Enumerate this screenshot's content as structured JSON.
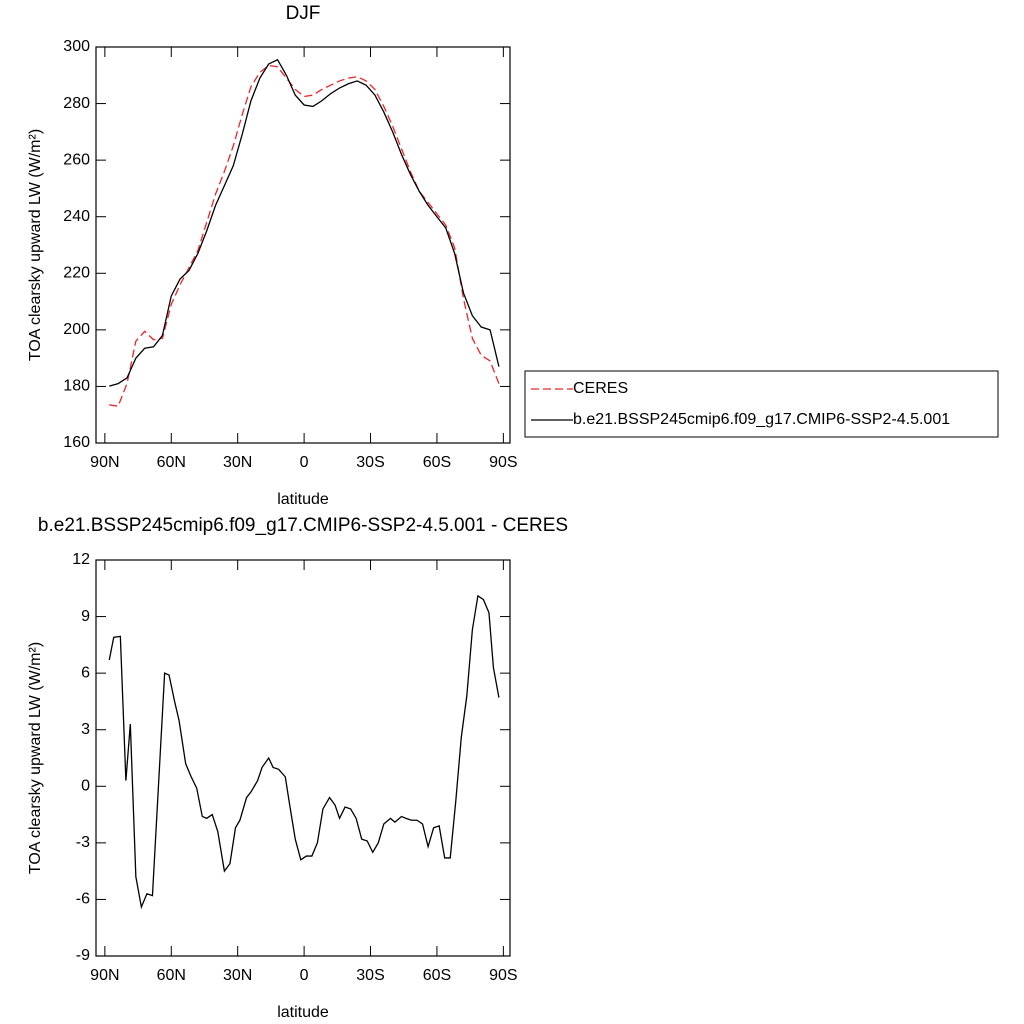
{
  "chart_data": [
    {
      "type": "line",
      "title": "DJF",
      "xlabel": "latitude",
      "ylabel": "TOA clearsky upward LW (W/m²)",
      "x": [
        88,
        84,
        80,
        76,
        72,
        68,
        64,
        60,
        56,
        52,
        48,
        44,
        40,
        36,
        32,
        28,
        24,
        20,
        16,
        12,
        8,
        4,
        0,
        -4,
        -8,
        -12,
        -16,
        -20,
        -24,
        -28,
        -32,
        -36,
        -40,
        -44,
        -48,
        -52,
        -56,
        -60,
        -64,
        -68,
        -72,
        -76,
        -80,
        -84,
        -88
      ],
      "series": [
        {
          "name": "CERES",
          "color": "#e8262a",
          "line_style": "dashed",
          "values": [
            173.5,
            173,
            181,
            196,
            199.5,
            196.5,
            197,
            209,
            216,
            222,
            228,
            238,
            248,
            256,
            265,
            276,
            286,
            291,
            293.5,
            293,
            289,
            285,
            282.5,
            283,
            285,
            286.5,
            288,
            289,
            289.5,
            288,
            285,
            279,
            272,
            264,
            256,
            249,
            245,
            241,
            237,
            229,
            211,
            197,
            191,
            189,
            181
          ]
        },
        {
          "name": "b.e21.BSSP245cmip6.f09_g17.CMIP6-SSP2-4.5.001",
          "color": "#000000",
          "line_style": "solid",
          "values": [
            180.1,
            181,
            183,
            190,
            193.5,
            194,
            198,
            212,
            218,
            221,
            227,
            235,
            244,
            251,
            258,
            269,
            281,
            289,
            294,
            295.5,
            290,
            283,
            279.5,
            279,
            281,
            283.5,
            285.5,
            287,
            288,
            286.5,
            283,
            277,
            270,
            262,
            255,
            249,
            244,
            240,
            236,
            227,
            213,
            205,
            201,
            200,
            187
          ]
        }
      ],
      "xlim": [
        94,
        -93
      ],
      "xticks": [
        {
          "value": 90,
          "label": "90N"
        },
        {
          "value": 60,
          "label": "60N"
        },
        {
          "value": 30,
          "label": "30N"
        },
        0,
        {
          "value": -30,
          "label": "30S"
        },
        {
          "value": -60,
          "label": "60S"
        },
        {
          "value": -90,
          "label": "90S"
        }
      ],
      "ylim": [
        160,
        300
      ],
      "yticks": [
        160,
        180,
        200,
        220,
        240,
        260,
        280,
        300
      ],
      "grid": false,
      "legend": "right"
    },
    {
      "type": "line",
      "title": "b.e21.BSSP245cmip6.f09_g17.CMIP6-SSP2-4.5.001 - CERES",
      "xlabel": "latitude",
      "ylabel": "TOA clearsky upward LW (W/m²)",
      "x": [
        88,
        86,
        83,
        80.5,
        78.5,
        76,
        73.5,
        71,
        68.5,
        63,
        61,
        58.5,
        56.5,
        53.5,
        51,
        48.5,
        46,
        44,
        41.5,
        39,
        36,
        33.5,
        31,
        29,
        26,
        24,
        21,
        19,
        16,
        14,
        11.5,
        8.5,
        6.5,
        4,
        1.5,
        -1,
        -3.5,
        -6,
        -8.5,
        -11.5,
        -14,
        -16,
        -18.5,
        -21,
        -23.5,
        -26,
        -28.5,
        -31,
        -33.5,
        -36,
        -39,
        -41,
        -44,
        -46,
        -48.5,
        -51,
        -53.5,
        -56,
        -58.5,
        -61,
        -63.5,
        -66,
        -68.5,
        -71,
        -73.5,
        -76,
        -78.5,
        -81,
        -83.5,
        -85.5,
        -88
      ],
      "series": [
        {
          "name": "b.e21.BSSP245cmip6.f09_g17.CMIP6-SSP2-4.5.001 - CERES",
          "color": "#000000",
          "line_style": "solid",
          "values": [
            6.7,
            7.9,
            7.95,
            0.3,
            3.3,
            -4.8,
            -6.4,
            -5.7,
            -5.8,
            6.0,
            5.9,
            4.5,
            3.5,
            1.2,
            0.5,
            -0.1,
            -1.6,
            -1.7,
            -1.5,
            -2.4,
            -4.5,
            -4.1,
            -2.2,
            -1.8,
            -0.6,
            -0.3,
            0.3,
            1.0,
            1.5,
            1.0,
            0.9,
            0.5,
            -1.0,
            -2.8,
            -3.9,
            -3.7,
            -3.7,
            -3.0,
            -1.2,
            -0.6,
            -1.0,
            -1.7,
            -1.1,
            -1.2,
            -1.7,
            -2.8,
            -2.9,
            -3.5,
            -3.0,
            -2.0,
            -1.7,
            -1.9,
            -1.6,
            -1.7,
            -1.8,
            -1.8,
            -2.0,
            -3.2,
            -2.2,
            -2.1,
            -3.8,
            -3.8,
            -0.8,
            2.6,
            4.8,
            8.3,
            10.1,
            9.9,
            9.2,
            6.3,
            4.7
          ]
        }
      ],
      "xlim": [
        94,
        -93
      ],
      "xticks": [
        {
          "value": 90,
          "label": "90N"
        },
        {
          "value": 60,
          "label": "60N"
        },
        {
          "value": 30,
          "label": "30N"
        },
        0,
        {
          "value": -30,
          "label": "30S"
        },
        {
          "value": -60,
          "label": "60S"
        },
        {
          "value": -90,
          "label": "90S"
        }
      ],
      "ylim": [
        -9,
        12
      ],
      "yticks": [
        -9,
        -6,
        -3,
        0,
        3,
        6,
        9,
        12
      ],
      "grid": false
    }
  ]
}
